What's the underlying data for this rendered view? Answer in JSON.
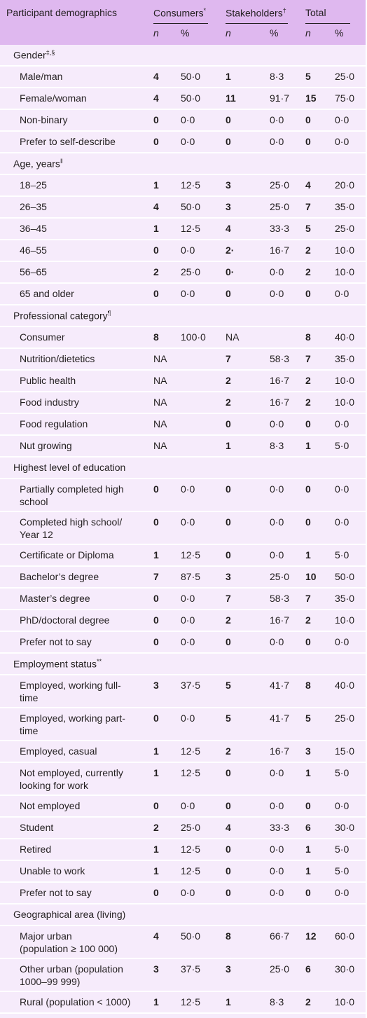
{
  "header": {
    "title": "Participant demographics",
    "groups": [
      {
        "label": "Consumers",
        "mark": "*"
      },
      {
        "label": "Stakeholders",
        "mark": "†"
      },
      {
        "label": "Total"
      }
    ],
    "subheads": [
      "n",
      "%",
      "n",
      "%",
      "n",
      "%"
    ]
  },
  "sections": [
    {
      "title": "Gender",
      "mark": "‡,§",
      "rows": [
        [
          [
            "Male/man"
          ],
          "4",
          "50·0",
          "1",
          "8·3",
          "5",
          "25·0"
        ],
        [
          [
            "Female/woman"
          ],
          "4",
          "50·0",
          "11",
          "91·7",
          "15",
          "75·0"
        ],
        [
          [
            "Non-binary"
          ],
          "0",
          "0·0",
          "0",
          "0·0",
          "0",
          "0·0"
        ],
        [
          [
            "Prefer to self-describe"
          ],
          "0",
          "0·0",
          "0",
          "0·0",
          "0",
          "0·0"
        ]
      ]
    },
    {
      "title": "Age, years",
      "mark": "‖",
      "rows": [
        [
          [
            "18–25"
          ],
          "1",
          "12·5",
          "3",
          "25·0",
          "4",
          "20·0"
        ],
        [
          [
            "26–35"
          ],
          "4",
          "50·0",
          "3",
          "25·0",
          "7",
          "35·0"
        ],
        [
          [
            "36–45"
          ],
          "1",
          "12·5",
          "4",
          "33·3",
          "5",
          "25·0"
        ],
        [
          [
            "46–55"
          ],
          "0",
          "0·0",
          "2·",
          "16·7",
          "2",
          "10·0"
        ],
        [
          [
            "56–65"
          ],
          "2",
          "25·0",
          "0·",
          "0·0",
          "2",
          "10·0"
        ],
        [
          [
            "65 and older"
          ],
          "0",
          "0·0",
          "0",
          "0·0",
          "0",
          "0·0"
        ]
      ]
    },
    {
      "title": "Professional category",
      "mark": "¶",
      "rows": [
        [
          [
            "Consumer"
          ],
          "8",
          "100·0",
          "NA",
          null,
          "8",
          "40·0"
        ],
        [
          [
            "Nutrition/dietetics"
          ],
          "NA",
          null,
          "7",
          "58·3",
          "7",
          "35·0"
        ],
        [
          [
            "Public health"
          ],
          "NA",
          null,
          "2",
          "16·7",
          "2",
          "10·0"
        ],
        [
          [
            "Food industry"
          ],
          "NA",
          null,
          "2",
          "16·7",
          "2",
          "10·0"
        ],
        [
          [
            "Food regulation"
          ],
          "NA",
          null,
          "0",
          "0·0",
          "0",
          "0·0"
        ],
        [
          [
            "Nut growing"
          ],
          "NA",
          null,
          "1",
          "8·3",
          "1",
          "5·0"
        ]
      ]
    },
    {
      "title": "Highest level of education",
      "rows": [
        [
          [
            "Partially completed high",
            "school"
          ],
          "0",
          "0·0",
          "0",
          "0·0",
          "0",
          "0·0"
        ],
        [
          [
            "Completed high school/",
            "Year 12"
          ],
          "0",
          "0·0",
          "0",
          "0·0",
          "0",
          "0·0"
        ],
        [
          [
            "Certificate or Diploma"
          ],
          "1",
          "12·5",
          "0",
          "0·0",
          "1",
          "5·0"
        ],
        [
          [
            "Bachelor’s degree"
          ],
          "7",
          "87·5",
          "3",
          "25·0",
          "10",
          "50·0"
        ],
        [
          [
            "Master’s degree"
          ],
          "0",
          "0·0",
          "7",
          "58·3",
          "7",
          "35·0"
        ],
        [
          [
            "PhD/doctoral degree"
          ],
          "0",
          "0·0",
          "2",
          "16·7",
          "2",
          "10·0"
        ],
        [
          [
            "Prefer not to say"
          ],
          "0",
          "0·0",
          "0",
          "0·0",
          "0",
          "0·0"
        ]
      ]
    },
    {
      "title": "Employment status",
      "mark": "**",
      "rows": [
        [
          [
            "Employed, working full-",
            "time"
          ],
          "3",
          "37·5",
          "5",
          "41·7",
          "8",
          "40·0"
        ],
        [
          [
            "Employed, working part-",
            "time"
          ],
          "0",
          "0·0",
          "5",
          "41·7",
          "5",
          "25·0"
        ],
        [
          [
            "Employed, casual"
          ],
          "1",
          "12·5",
          "2",
          "16·7",
          "3",
          "15·0"
        ],
        [
          [
            "Not employed, currently",
            "looking for work"
          ],
          "1",
          "12·5",
          "0",
          "0·0",
          "1",
          "5·0"
        ],
        [
          [
            "Not employed"
          ],
          "0",
          "0·0",
          "0",
          "0·0",
          "0",
          "0·0"
        ],
        [
          [
            "Student"
          ],
          "2",
          "25·0",
          "4",
          "33·3",
          "6",
          "30·0"
        ],
        [
          [
            "Retired"
          ],
          "1",
          "12·5",
          "0",
          "0·0",
          "1",
          "5·0"
        ],
        [
          [
            "Unable to work"
          ],
          "1",
          "12·5",
          "0",
          "0·0",
          "1",
          "5·0"
        ],
        [
          [
            "Prefer not to say"
          ],
          "0",
          "0·0",
          "0",
          "0·0",
          "0",
          "0·0"
        ]
      ]
    },
    {
      "title": "Geographical area (living)",
      "rows": [
        [
          [
            "Major urban",
            "(population ≥ 100 000)"
          ],
          "4",
          "50·0",
          "8",
          "66·7",
          "12",
          "60·0"
        ],
        [
          [
            "Other urban (population",
            "1000–99 999)"
          ],
          "3",
          "37·5",
          "3",
          "25·0",
          "6",
          "30·0"
        ],
        [
          [
            "Rural (population < 1000)"
          ],
          "1",
          "12·5",
          "1",
          "8·3",
          "2",
          "10·0"
        ]
      ]
    }
  ]
}
